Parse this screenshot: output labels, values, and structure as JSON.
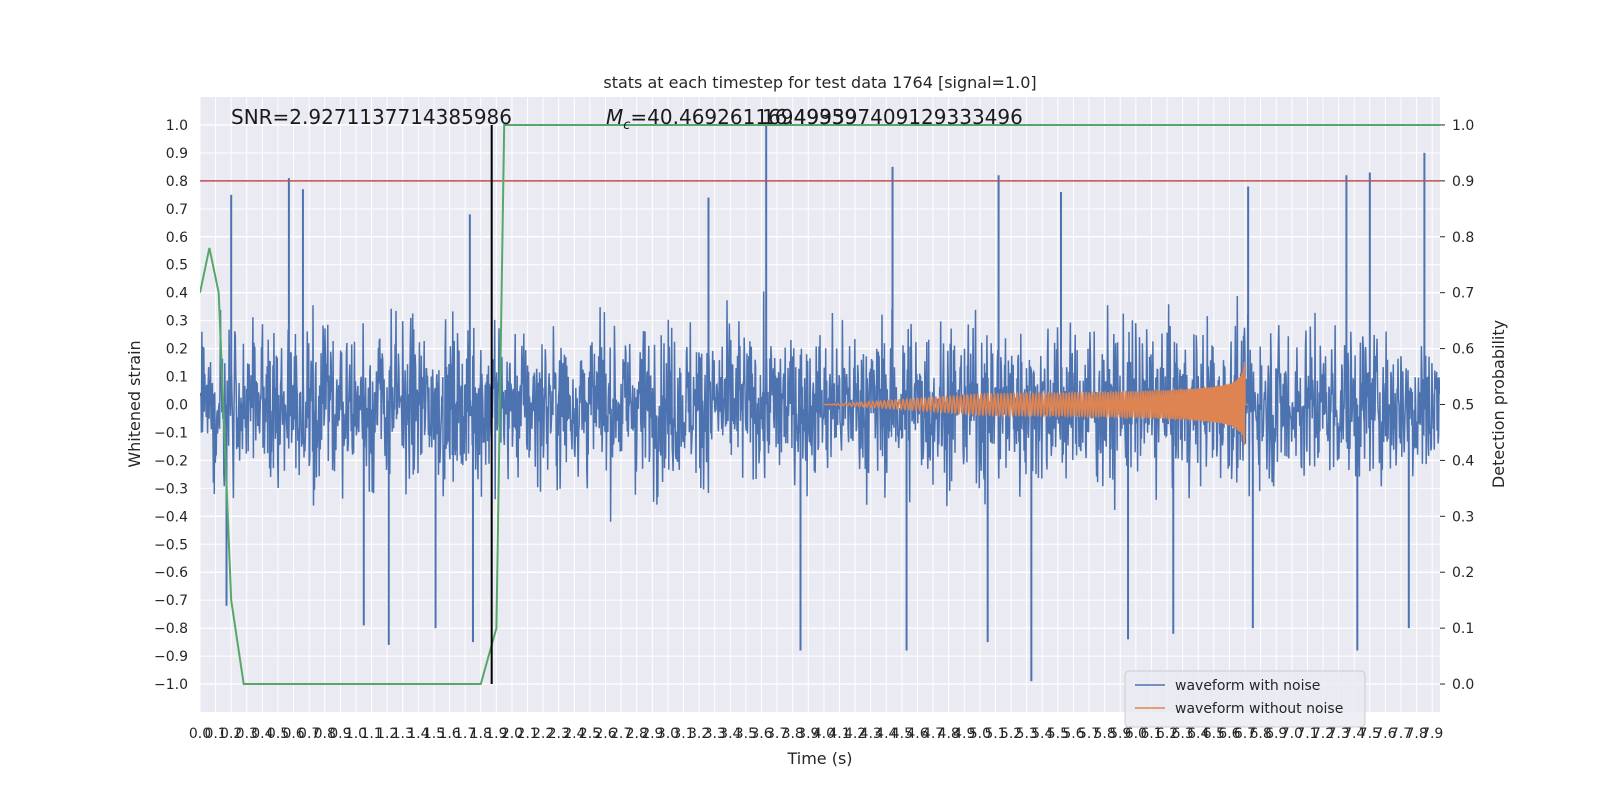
{
  "chart_data": {
    "type": "line",
    "title": "stats at each timestep for test data 1764 [signal=1.0]",
    "xlabel": "Time (s)",
    "ylabel": "Whitened strain",
    "y2label": "Detection probability",
    "xlim": [
      0.0,
      7.95
    ],
    "ylim": [
      -1.1,
      1.1
    ],
    "y2lim": [
      -0.05,
      1.05
    ],
    "xticks": [
      0.0,
      0.1,
      0.2,
      0.3,
      0.4,
      0.5,
      0.6,
      0.7,
      0.8,
      0.9,
      1.0,
      1.1,
      1.2,
      1.3,
      1.4,
      1.5,
      1.6,
      1.7,
      1.8,
      1.9,
      2.0,
      2.1,
      2.2,
      2.3,
      2.4,
      2.5,
      2.6,
      2.7,
      2.8,
      2.9,
      3.0,
      3.1,
      3.2,
      3.3,
      3.4,
      3.5,
      3.6,
      3.7,
      3.8,
      3.9,
      4.0,
      4.1,
      4.2,
      4.3,
      4.4,
      4.5,
      4.6,
      4.7,
      4.8,
      4.9,
      5.0,
      5.1,
      5.2,
      5.3,
      5.4,
      5.5,
      5.6,
      5.7,
      5.8,
      5.9,
      6.0,
      6.1,
      6.2,
      6.3,
      6.4,
      6.5,
      6.6,
      6.7,
      6.8,
      6.9,
      7.0,
      7.1,
      7.2,
      7.3,
      7.4,
      7.5,
      7.6,
      7.7,
      7.8,
      7.9
    ],
    "yticks": [
      -1.0,
      -0.9,
      -0.8,
      -0.7,
      -0.6,
      -0.5,
      -0.4,
      -0.3,
      -0.2,
      -0.1,
      0.0,
      0.1,
      0.2,
      0.3,
      0.4,
      0.5,
      0.6,
      0.7,
      0.8,
      0.9,
      1.0
    ],
    "y2ticks": [
      0.0,
      0.1,
      0.2,
      0.3,
      0.4,
      0.5,
      0.6,
      0.7,
      0.8,
      0.9,
      1.0
    ],
    "grid": true,
    "legend_position": "lower-right",
    "annotations": {
      "snr": "SNR=2.9271137714385986",
      "mc_prefix": "M",
      "mc_sub": "c",
      "mc_value": "=40.46926116949359",
      "mc_overlap": "16.499397409129333496"
    },
    "series": [
      {
        "name": "waveform with noise",
        "color": "#4c72b0",
        "description": "dense noisy strain, envelope approx ±0.5",
        "spikes_up": [
          [
            0.2,
            0.75
          ],
          [
            0.57,
            0.81
          ],
          [
            0.66,
            0.77
          ],
          [
            1.73,
            0.68
          ],
          [
            3.26,
            0.74
          ],
          [
            3.63,
            1.0
          ],
          [
            4.44,
            0.85
          ],
          [
            5.12,
            0.82
          ],
          [
            5.52,
            0.76
          ],
          [
            6.72,
            0.78
          ],
          [
            7.35,
            0.82
          ],
          [
            7.5,
            0.83
          ],
          [
            7.85,
            0.9
          ]
        ],
        "spikes_down": [
          [
            0.17,
            -0.72
          ],
          [
            1.05,
            -0.79
          ],
          [
            1.21,
            -0.86
          ],
          [
            1.51,
            -0.8
          ],
          [
            1.75,
            -0.85
          ],
          [
            3.85,
            -0.88
          ],
          [
            4.53,
            -0.88
          ],
          [
            5.05,
            -0.85
          ],
          [
            5.33,
            -0.99
          ],
          [
            5.95,
            -0.84
          ],
          [
            6.24,
            -0.82
          ],
          [
            6.75,
            -0.8
          ],
          [
            7.42,
            -0.88
          ],
          [
            7.75,
            -0.8
          ]
        ]
      },
      {
        "name": "waveform without noise",
        "color": "#dd8452",
        "description": "chirp signal growing to merger near 6.7 s",
        "t_start": 4.0,
        "t_merger": 6.7,
        "peak_amplitude": 0.17
      },
      {
        "name": "detection probability",
        "color": "#55a868",
        "axis": "right",
        "x": [
          0.0,
          0.06,
          0.12,
          0.2,
          0.28,
          1.8,
          1.9,
          1.95,
          7.95
        ],
        "y": [
          0.7,
          0.78,
          0.7,
          0.15,
          0.0,
          0.0,
          0.1,
          1.0,
          1.0
        ]
      },
      {
        "name": "threshold",
        "color": "#c44e52",
        "axis": "right",
        "y": 0.9
      },
      {
        "name": "detection time",
        "color": "#000000",
        "x": 1.87
      }
    ]
  },
  "legend": {
    "items": [
      {
        "label": "waveform with noise",
        "color": "#4c72b0"
      },
      {
        "label": "waveform without noise",
        "color": "#dd8452"
      }
    ]
  },
  "colors": {
    "axes_bg": "#eaeaf2",
    "grid": "#ffffff"
  }
}
